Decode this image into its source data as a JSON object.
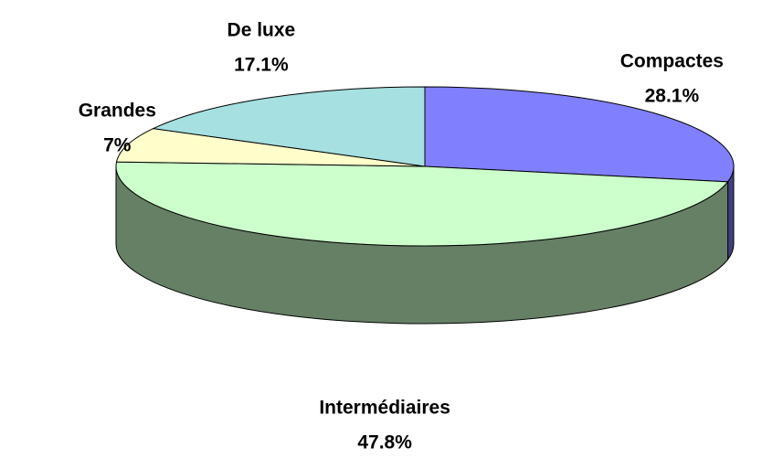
{
  "chart_data": {
    "type": "pie3d",
    "categories": [
      "Compactes",
      "Intermédiaires",
      "Grandes",
      "De luxe"
    ],
    "values": [
      28.1,
      47.8,
      7,
      17.1
    ],
    "value_labels": [
      "28.1%",
      "47.8%",
      "7%",
      "17.1%"
    ],
    "colors": [
      "#8080ff",
      "#ccffcc",
      "#ffffcc",
      "#a6e0e0"
    ]
  }
}
